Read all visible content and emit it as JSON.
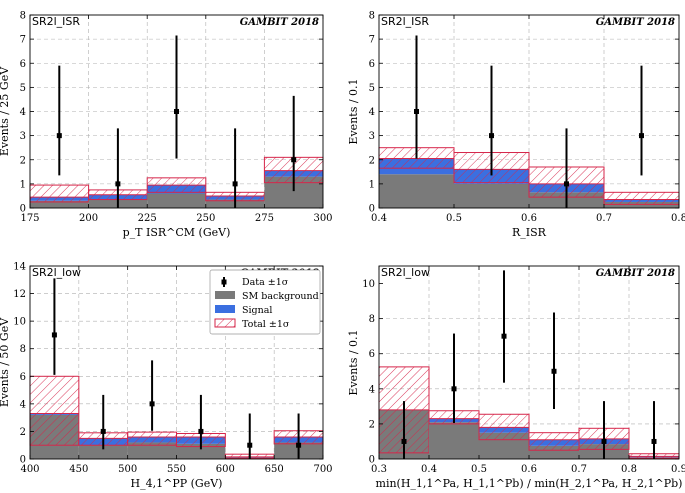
{
  "colors": {
    "background": "#7a7a7a",
    "signal": "#3b6fe0",
    "total_band": "#d6264a",
    "data": "#000000",
    "grid": "#b0b0b0"
  },
  "legend": {
    "data": "Data ±1σ",
    "background": "SM background",
    "signal": "Signal",
    "total": "Total ±1σ"
  },
  "chart_data": [
    {
      "type": "bar",
      "region": "SR2l_ISR",
      "tag": "GAMBIT 2018",
      "xlabel": "p_T ISR^CM (GeV)",
      "ylabel": "Events / 25 GeV",
      "xlim": [
        175,
        300
      ],
      "ylim": [
        0,
        8
      ],
      "xticks": [
        175,
        200,
        225,
        250,
        275,
        300
      ],
      "yticks": [
        0,
        1,
        2,
        3,
        4,
        5,
        6,
        7,
        8
      ],
      "grid": true,
      "bin_edges": [
        175,
        200,
        225,
        250,
        275,
        300
      ],
      "series": [
        {
          "name": "SM background",
          "values": [
            0.3,
            0.35,
            0.6,
            0.35,
            1.3
          ]
        },
        {
          "name": "Signal",
          "values": [
            0.15,
            0.2,
            0.35,
            0.15,
            0.25
          ]
        },
        {
          "name": "Total ±1σ",
          "values": [
            0.45,
            0.55,
            0.95,
            0.5,
            1.55
          ],
          "low": [
            0.25,
            0.35,
            0.65,
            0.3,
            1.05
          ],
          "high": [
            0.95,
            0.75,
            1.25,
            0.65,
            2.1
          ]
        },
        {
          "name": "Data ±1σ",
          "x": [
            187.5,
            212.5,
            237.5,
            262.5,
            287.5
          ],
          "values": [
            3,
            1,
            4,
            1,
            2
          ],
          "low": [
            1.35,
            0.0,
            2.05,
            0.0,
            0.7
          ],
          "high": [
            5.9,
            3.3,
            7.15,
            3.3,
            4.65
          ]
        }
      ]
    },
    {
      "type": "bar",
      "region": "SR2l_ISR",
      "tag": "GAMBIT 2018",
      "xlabel": "R_ISR",
      "ylabel": "Events / 0.1",
      "xlim": [
        0.4,
        0.8
      ],
      "ylim": [
        0,
        8
      ],
      "xticks": [
        0.4,
        0.5,
        0.6,
        0.7,
        0.8
      ],
      "yticks": [
        0,
        1,
        2,
        3,
        4,
        5,
        6,
        7,
        8
      ],
      "grid": true,
      "bin_edges": [
        0.4,
        0.5,
        0.6,
        0.7,
        0.8
      ],
      "series": [
        {
          "name": "SM background",
          "values": [
            1.4,
            1.0,
            0.65,
            0.25
          ]
        },
        {
          "name": "Signal",
          "values": [
            0.65,
            0.6,
            0.35,
            0.1
          ]
        },
        {
          "name": "Total ±1σ",
          "values": [
            2.05,
            1.6,
            1.0,
            0.35
          ],
          "low": [
            1.65,
            1.05,
            0.45,
            0.15
          ],
          "high": [
            2.5,
            2.3,
            1.7,
            0.65
          ]
        },
        {
          "name": "Data ±1σ",
          "x": [
            0.45,
            0.55,
            0.65,
            0.75
          ],
          "values": [
            4,
            3,
            1,
            3
          ],
          "low": [
            2.05,
            1.35,
            0.0,
            1.35
          ],
          "high": [
            7.15,
            5.9,
            3.3,
            5.9
          ]
        }
      ]
    },
    {
      "type": "bar",
      "region": "SR2l_low",
      "tag": "GAMBIT 2018",
      "xlabel": "H_4,1^PP (GeV)",
      "ylabel": "Events / 50 GeV",
      "xlim": [
        400,
        700
      ],
      "ylim": [
        0,
        14
      ],
      "xticks": [
        400,
        450,
        500,
        550,
        600,
        650,
        700
      ],
      "yticks": [
        0,
        2,
        4,
        6,
        8,
        10,
        12,
        14
      ],
      "grid": true,
      "bin_edges": [
        400,
        450,
        500,
        550,
        600,
        650,
        700
      ],
      "series": [
        {
          "name": "SM background",
          "values": [
            3.2,
            1.0,
            1.2,
            1.1,
            0.1,
            1.2
          ]
        },
        {
          "name": "Signal",
          "values": [
            0.1,
            0.5,
            0.4,
            0.5,
            0.05,
            0.4
          ]
        },
        {
          "name": "Total ±1σ",
          "values": [
            3.3,
            1.5,
            1.6,
            1.6,
            0.15,
            1.6
          ],
          "low": [
            1.0,
            1.0,
            1.0,
            0.9,
            0.05,
            1.1
          ],
          "high": [
            6.0,
            1.9,
            1.95,
            1.85,
            0.35,
            2.05
          ]
        },
        {
          "name": "Data ±1σ",
          "x": [
            425,
            475,
            525,
            575,
            625,
            675
          ],
          "values": [
            9,
            2,
            4,
            2,
            1,
            1
          ],
          "low": [
            6.1,
            0.7,
            2.05,
            0.7,
            0.0,
            0.0
          ],
          "high": [
            13.1,
            4.65,
            7.15,
            4.65,
            3.3,
            3.3
          ]
        }
      ]
    },
    {
      "type": "bar",
      "region": "SR2l_low",
      "tag": "GAMBIT 2018",
      "xlabel": "min(H_1,1^Pa, H_1,1^Pb) / min(H_2,1^Pa, H_2,1^Pb)",
      "ylabel": "Events / 0.1",
      "xlim": [
        0.3,
        0.9
      ],
      "ylim": [
        0,
        11
      ],
      "xticks": [
        0.3,
        0.4,
        0.5,
        0.6,
        0.7,
        0.8,
        0.9
      ],
      "yticks": [
        0,
        2,
        4,
        6,
        8,
        10
      ],
      "grid": true,
      "bin_edges": [
        0.3,
        0.4,
        0.5,
        0.6,
        0.7,
        0.8,
        0.9
      ],
      "series": [
        {
          "name": "SM background",
          "values": [
            2.8,
            2.1,
            1.5,
            0.75,
            0.85,
            0.1
          ]
        },
        {
          "name": "Signal",
          "values": [
            0.0,
            0.2,
            0.3,
            0.35,
            0.3,
            0.05
          ]
        },
        {
          "name": "Total ±1σ",
          "values": [
            2.8,
            2.3,
            1.8,
            1.1,
            1.15,
            0.15
          ],
          "low": [
            0.35,
            2.0,
            1.1,
            0.5,
            0.55,
            0.05
          ],
          "high": [
            5.25,
            2.75,
            2.55,
            1.5,
            1.75,
            0.3
          ]
        },
        {
          "name": "Data ±1σ",
          "x": [
            0.35,
            0.45,
            0.55,
            0.65,
            0.75,
            0.85
          ],
          "values": [
            1,
            4,
            7,
            5,
            1,
            1
          ],
          "low": [
            0.0,
            2.05,
            4.35,
            2.85,
            0.0,
            0.0
          ],
          "high": [
            3.3,
            7.15,
            10.75,
            8.35,
            3.3,
            3.3
          ]
        }
      ]
    }
  ]
}
